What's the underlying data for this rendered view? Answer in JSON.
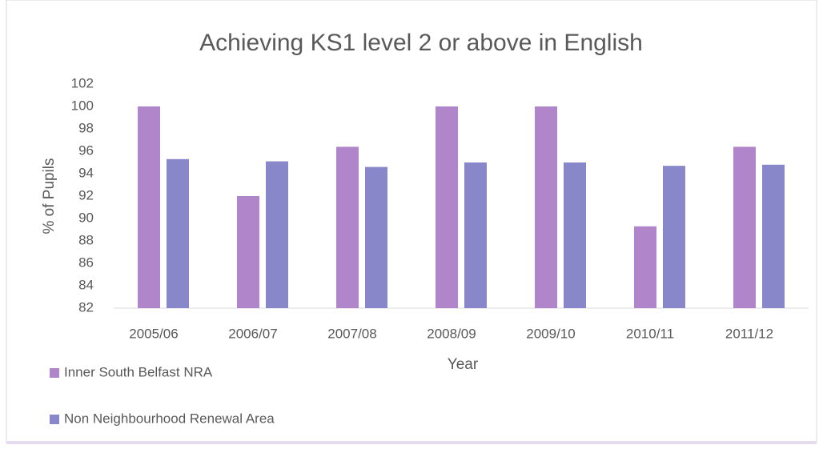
{
  "chart_data": {
    "type": "bar",
    "title": "Achieving KS1 level 2 or above in English",
    "x_label": "Year",
    "y_label": "% of Pupils",
    "categories": [
      "2005/06",
      "2006/07",
      "2007/08",
      "2008/09",
      "2009/10",
      "2010/11",
      "2011/12"
    ],
    "series": [
      {
        "name": "Inner South Belfast NRA",
        "color": "#b085c9",
        "values": [
          100,
          92,
          96.4,
          100,
          100,
          89.3,
          96.4
        ]
      },
      {
        "name": "Non Neighbourhood Renewal Area",
        "color": "#8787c9",
        "values": [
          95.3,
          95.1,
          94.6,
          95.0,
          95.0,
          94.7,
          94.8
        ]
      }
    ],
    "ylim": [
      82,
      102
    ],
    "yticks": [
      82,
      84,
      86,
      88,
      90,
      92,
      94,
      96,
      98,
      100,
      102
    ],
    "grid": false,
    "legend": "bottom-left"
  }
}
